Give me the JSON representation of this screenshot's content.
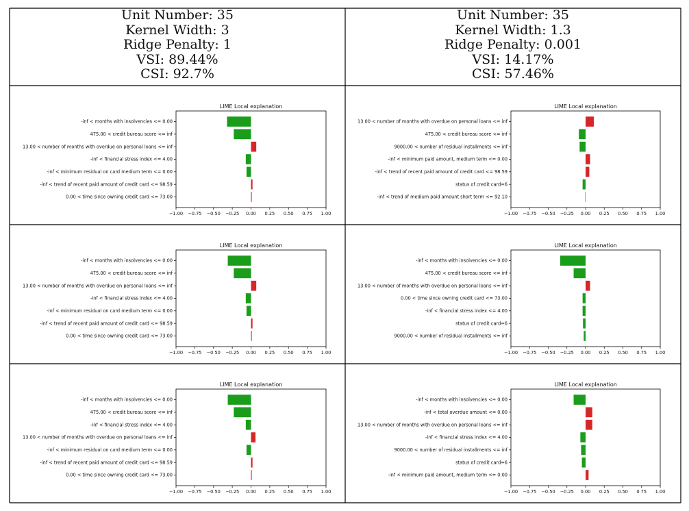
{
  "columns": [
    {
      "header": {
        "unit": "Unit Number: 35",
        "kernel": "Kernel Width: 3",
        "ridge": "Ridge Penalty: 1",
        "vsi": "VSI: 89.44%",
        "csi": "CSI: 92.7%"
      }
    },
    {
      "header": {
        "unit": "Unit Number: 35",
        "kernel": "Kernel Width: 1.3",
        "ridge": "Ridge Penalty: 0.001",
        "vsi": "VSI: 14.17%",
        "csi": "CSI: 57.46%"
      }
    }
  ],
  "colors": {
    "positive": "#d62728",
    "negative": "#1a9d1a"
  },
  "chart_data": [
    {
      "type": "bar",
      "orientation": "horizontal",
      "title": "LIME Local explanation",
      "xlim": [
        -1.0,
        1.0
      ],
      "xticks": [
        "−1.00",
        "−0.75",
        "−0.50",
        "−0.25",
        "0.00",
        "0.25",
        "0.50",
        "0.75",
        "1.00"
      ],
      "categories": [
        "-inf < months with insolvencies <= 0.00",
        "475.00 < credit bureau score <= inf",
        "13.00 < number of months with overdue on personal loans <= inf",
        "-inf < financial stress index <= 4.00",
        "-inf < minimum residual on card medium term <= 0.00",
        "-inf < trend of recent paid amount of credit card <= 98.59",
        "0.00 < time since owning credit card <= 73.00"
      ],
      "values": [
        -0.32,
        -0.23,
        0.07,
        -0.07,
        -0.06,
        0.02,
        0.01
      ]
    },
    {
      "type": "bar",
      "orientation": "horizontal",
      "title": "LIME Local explanation",
      "xlim": [
        -1.0,
        1.0
      ],
      "xticks": [
        "−1.00",
        "−0.75",
        "−0.50",
        "−0.25",
        "0.00",
        "0.25",
        "0.50",
        "0.75",
        "1.00"
      ],
      "categories": [
        "13.00 < number of months with overdue on personal loans <= inf",
        "475.00 < credit bureau score <= inf",
        "9000.00 < number of residual installments <= inf",
        "-inf < minimum paid amount, medium term <= 0.00",
        "-inf < trend of recent paid amount of credit card <= 98.59",
        "status of credit card=6",
        "-inf < trend of medium paid amount short term <= 92.10"
      ],
      "values": [
        0.11,
        -0.09,
        -0.08,
        0.06,
        0.05,
        -0.04,
        -0.005
      ]
    },
    {
      "type": "bar",
      "orientation": "horizontal",
      "title": "LIME Local explanation",
      "xlim": [
        -1.0,
        1.0
      ],
      "xticks": [
        "−1.00",
        "−0.75",
        "−0.50",
        "−0.25",
        "0.00",
        "0.25",
        "0.50",
        "0.75",
        "1.00"
      ],
      "categories": [
        "-inf < months with insolvencies <= 0.00",
        "475.00 < credit bureau score <= inf",
        "13.00 < number of months with overdue on personal loans <= inf",
        "-inf < financial stress index <= 4.00",
        "-inf < minimum residual on card medium term <= 0.00",
        "-inf < trend of recent paid amount of credit card <= 98.59",
        "0.00 < time since owning credit card <= 73.00"
      ],
      "values": [
        -0.31,
        -0.23,
        0.07,
        -0.07,
        -0.06,
        0.02,
        0.01
      ]
    },
    {
      "type": "bar",
      "orientation": "horizontal",
      "title": "LIME Local explanation",
      "xlim": [
        -1.0,
        1.0
      ],
      "xticks": [
        "−1.00",
        "−0.75",
        "−0.50",
        "−0.25",
        "0.00",
        "0.25",
        "0.50",
        "0.75",
        "1.00"
      ],
      "categories": [
        "-inf < months with insolvencies <= 0.00",
        "475.00 < credit bureau score <= inf",
        "13.00 < number of months with overdue on personal loans <= inf",
        "0.00 < time since owning credit card <= 73.00",
        "-inf < financial stress index <= 4.00",
        "status of credit card=6",
        "9000.00 < number of residual installments <= inf"
      ],
      "values": [
        -0.34,
        -0.16,
        0.06,
        -0.04,
        -0.04,
        -0.035,
        -0.025
      ]
    },
    {
      "type": "bar",
      "orientation": "horizontal",
      "title": "LIME Local explanation",
      "xlim": [
        -1.0,
        1.0
      ],
      "xticks": [
        "−1.00",
        "−0.75",
        "−0.50",
        "−0.25",
        "0.00",
        "0.25",
        "0.50",
        "0.75",
        "1.00"
      ],
      "categories": [
        "-inf < months with insolvencies <= 0.00",
        "475.00 < credit bureau score <= inf",
        "-inf < financial stress index <= 4.00",
        "13.00 < number of months with overdue on personal loans <= inf",
        "-inf < minimum residual on card medium term <= 0.00",
        "-inf < trend of recent paid amount of credit card <= 98.59",
        "0.00 < time since owning credit card <= 73.00"
      ],
      "values": [
        -0.31,
        -0.23,
        -0.07,
        0.06,
        -0.06,
        0.02,
        0.01
      ]
    },
    {
      "type": "bar",
      "orientation": "horizontal",
      "title": "LIME Local explanation",
      "xlim": [
        -1.0,
        1.0
      ],
      "xticks": [
        "−1.00",
        "−0.75",
        "−0.50",
        "−0.25",
        "0.00",
        "0.25",
        "0.50",
        "0.75",
        "1.00"
      ],
      "categories": [
        "-inf < months with insolvencies <= 0.00",
        "-inf < total overdue amount <= 0.00",
        "13.00 < number of months with overdue on personal loans <= inf",
        "-inf < financial stress index <= 4.00",
        "9000.00 < number of residual installments <= inf",
        "status of credit card=6",
        "-inf < minimum paid amount, medium term <= 0.00"
      ],
      "values": [
        -0.16,
        0.09,
        0.09,
        -0.07,
        -0.06,
        -0.05,
        0.04
      ]
    }
  ]
}
